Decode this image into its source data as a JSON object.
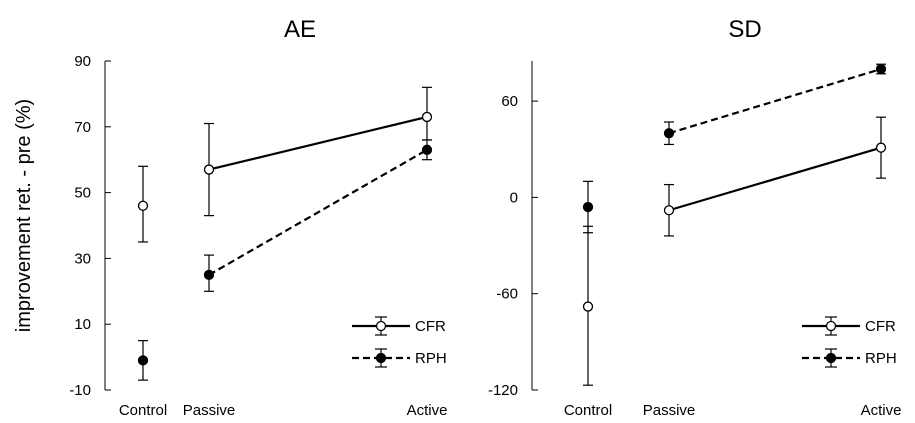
{
  "chart_data": [
    {
      "type": "line",
      "title": "AE",
      "ylabel": "improvement ret. - pre (%)",
      "xlabel": "",
      "categories": [
        "Control",
        "Passive",
        "Active"
      ],
      "ylim": [
        -10,
        90
      ],
      "yticks": [
        -10,
        10,
        30,
        50,
        70,
        90
      ],
      "series": [
        {
          "name": "CFR",
          "marker": "open-circle",
          "line": "solid",
          "color": "#000000",
          "values": [
            46,
            57,
            73
          ],
          "err_low": [
            35,
            43,
            66
          ],
          "err_high": [
            58,
            71,
            82
          ]
        },
        {
          "name": "RPH",
          "marker": "filled-circle",
          "line": "dashed",
          "color": "#000000",
          "values": [
            -1,
            25,
            63
          ],
          "err_low": [
            -7,
            20,
            60
          ],
          "err_high": [
            5,
            31,
            66
          ]
        }
      ],
      "legend_position": "bottom-right"
    },
    {
      "type": "line",
      "title": "SD",
      "ylabel": "",
      "xlabel": "",
      "categories": [
        "Control",
        "Passive",
        "Active"
      ],
      "ylim": [
        -120,
        85
      ],
      "yticks": [
        -120,
        -60,
        0,
        60
      ],
      "series": [
        {
          "name": "CFR",
          "marker": "open-circle",
          "line": "solid",
          "color": "#000000",
          "values": [
            -68,
            -8,
            31
          ],
          "err_low": [
            -117,
            -24,
            12
          ],
          "err_high": [
            -18,
            8,
            50
          ]
        },
        {
          "name": "RPH",
          "marker": "filled-circle",
          "line": "dashed",
          "color": "#000000",
          "values": [
            -6,
            40,
            80
          ],
          "err_low": [
            -22,
            33,
            77
          ],
          "err_high": [
            10,
            47,
            83
          ]
        }
      ],
      "legend_position": "bottom-right"
    }
  ]
}
